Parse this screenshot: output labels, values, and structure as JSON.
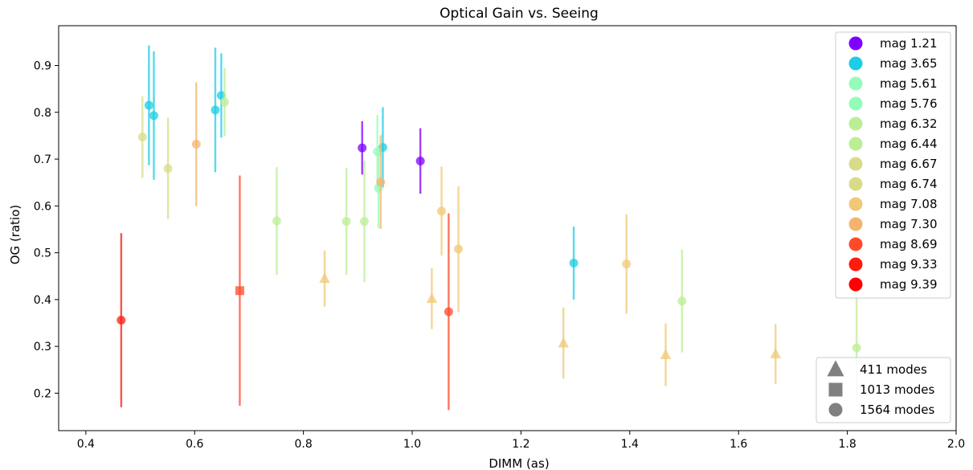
{
  "chart_data": {
    "type": "scatter",
    "title": "Optical Gain vs. Seeing",
    "xlabel": "DIMM (as)",
    "ylabel": "OG (ratio)",
    "xlim": [
      0.35,
      2.0
    ],
    "ylim": [
      0.12,
      0.985
    ],
    "xticks": [
      "0.4",
      "0.6",
      "0.8",
      "1.0",
      "1.2",
      "1.4",
      "1.6",
      "1.8",
      "2.0"
    ],
    "yticks": [
      "0.2",
      "0.3",
      "0.4",
      "0.5",
      "0.6",
      "0.7",
      "0.8",
      "0.9"
    ],
    "grid": false,
    "legend_position": "top-right",
    "series": [
      {
        "name": "mag 1.21",
        "color": "#8000ff",
        "points": [
          {
            "x": 0.908,
            "y": 0.724,
            "err": 0.057,
            "marker": "circle"
          },
          {
            "x": 1.015,
            "y": 0.696,
            "err": 0.07,
            "marker": "circle"
          }
        ]
      },
      {
        "name": "mag 3.65",
        "color": "#1ccde6",
        "points": [
          {
            "x": 0.516,
            "y": 0.815,
            "err": 0.128,
            "marker": "circle"
          },
          {
            "x": 0.525,
            "y": 0.793,
            "err": 0.137,
            "marker": "circle"
          },
          {
            "x": 0.638,
            "y": 0.805,
            "err": 0.133,
            "marker": "circle"
          },
          {
            "x": 0.649,
            "y": 0.836,
            "err": 0.09,
            "marker": "circle"
          },
          {
            "x": 0.946,
            "y": 0.725,
            "err": 0.086,
            "marker": "circle"
          },
          {
            "x": 1.297,
            "y": 0.478,
            "err": 0.078,
            "marker": "circle"
          }
        ]
      },
      {
        "name": "mag 5.61",
        "color": "#94fcb8",
        "points": [
          {
            "x": 0.938,
            "y": 0.638,
            "err": 0.085,
            "marker": "circle"
          }
        ]
      },
      {
        "name": "mag 5.76",
        "color": "#94fcb8",
        "points": [
          {
            "x": 0.936,
            "y": 0.716,
            "err": 0.078,
            "marker": "circle"
          }
        ]
      },
      {
        "name": "mag 6.32",
        "color": "#bcee96",
        "points": [
          {
            "x": 0.655,
            "y": 0.822,
            "err": 0.073,
            "marker": "circle"
          },
          {
            "x": 0.751,
            "y": 0.568,
            "err": 0.115,
            "marker": "circle"
          },
          {
            "x": 0.879,
            "y": 0.567,
            "err": 0.114,
            "marker": "circle"
          },
          {
            "x": 0.912,
            "y": 0.567,
            "err": 0.13,
            "marker": "circle"
          },
          {
            "x": 1.496,
            "y": 0.397,
            "err": 0.11,
            "marker": "circle"
          },
          {
            "x": 1.817,
            "y": 0.297,
            "err": 0.115,
            "marker": "circle"
          }
        ]
      },
      {
        "name": "mag 6.44",
        "color": "#bcee96",
        "points": []
      },
      {
        "name": "mag 6.67",
        "color": "#d8dc88",
        "points": [
          {
            "x": 0.504,
            "y": 0.747,
            "err": 0.087,
            "marker": "circle"
          },
          {
            "x": 0.551,
            "y": 0.68,
            "err": 0.108,
            "marker": "circle"
          }
        ]
      },
      {
        "name": "mag 6.74",
        "color": "#d8dc88",
        "points": []
      },
      {
        "name": "mag 7.08",
        "color": "#f0c878",
        "points": [
          {
            "x": 0.839,
            "y": 0.445,
            "err": 0.06,
            "marker": "triangle"
          },
          {
            "x": 1.036,
            "y": 0.402,
            "err": 0.065,
            "marker": "triangle"
          },
          {
            "x": 1.278,
            "y": 0.307,
            "err": 0.076,
            "marker": "triangle"
          },
          {
            "x": 1.466,
            "y": 0.282,
            "err": 0.067,
            "marker": "triangle"
          },
          {
            "x": 1.668,
            "y": 0.284,
            "err": 0.064,
            "marker": "triangle"
          },
          {
            "x": 1.054,
            "y": 0.589,
            "err": 0.095,
            "marker": "circle"
          },
          {
            "x": 1.085,
            "y": 0.508,
            "err": 0.134,
            "marker": "circle"
          },
          {
            "x": 1.394,
            "y": 0.476,
            "err": 0.106,
            "marker": "circle"
          }
        ]
      },
      {
        "name": "mag 7.30",
        "color": "#f5b46e",
        "points": [
          {
            "x": 0.603,
            "y": 0.732,
            "err": 0.132,
            "marker": "circle"
          },
          {
            "x": 0.942,
            "y": 0.651,
            "err": 0.1,
            "marker": "circle"
          }
        ]
      },
      {
        "name": "mag 8.69",
        "color": "#ff4a2a",
        "points": [
          {
            "x": 0.683,
            "y": 0.419,
            "err": 0.246,
            "marker": "square"
          },
          {
            "x": 1.067,
            "y": 0.374,
            "err": 0.21,
            "marker": "circle"
          }
        ]
      },
      {
        "name": "mag 9.33",
        "color": "#ff1a0e",
        "points": [
          {
            "x": 0.465,
            "y": 0.356,
            "err": 0.186,
            "marker": "circle"
          }
        ]
      },
      {
        "name": "mag 9.39",
        "color": "#ff0000",
        "points": []
      }
    ],
    "marker_legend": [
      {
        "label": "411 modes",
        "marker": "triangle",
        "color": "#808080"
      },
      {
        "label": "1013 modes",
        "marker": "square",
        "color": "#808080"
      },
      {
        "label": "1564 modes",
        "marker": "circle",
        "color": "#808080"
      }
    ]
  }
}
